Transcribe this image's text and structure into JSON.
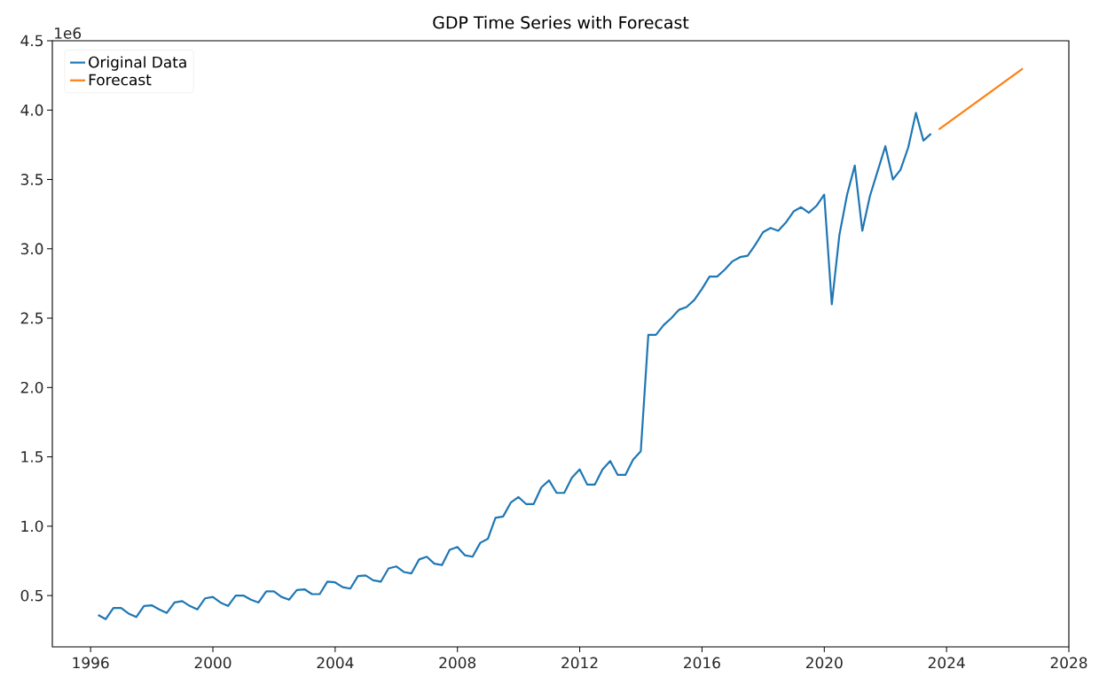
{
  "chart_data": {
    "type": "line",
    "title": "GDP Time Series with Forecast",
    "annotations": [
      "1e6"
    ],
    "series": [
      {
        "name": "Original Data",
        "color": "#1f77b4",
        "x": [
          "1996-03-31",
          "1996-06-30",
          "1996-09-30",
          "1996-12-31",
          "1997-03-31",
          "1997-06-30",
          "1997-09-30",
          "1997-12-31",
          "1998-03-31",
          "1998-06-30",
          "1998-09-30",
          "1998-12-31",
          "1999-03-31",
          "1999-06-30",
          "1999-09-30",
          "1999-12-31",
          "2000-03-31",
          "2000-06-30",
          "2000-09-30",
          "2000-12-31",
          "2001-03-31",
          "2001-06-30",
          "2001-09-30",
          "2001-12-31",
          "2002-03-31",
          "2002-06-30",
          "2002-09-30",
          "2002-12-31",
          "2003-03-31",
          "2003-06-30",
          "2003-09-30",
          "2003-12-31",
          "2004-03-31",
          "2004-06-30",
          "2004-09-30",
          "2004-12-31",
          "2005-03-31",
          "2005-06-30",
          "2005-09-30",
          "2005-12-31",
          "2006-03-31",
          "2006-06-30",
          "2006-09-30",
          "2006-12-31",
          "2007-03-31",
          "2007-06-30",
          "2007-09-30",
          "2007-12-31",
          "2008-03-31",
          "2008-06-30",
          "2008-09-30",
          "2008-12-31",
          "2009-03-31",
          "2009-06-30",
          "2009-09-30",
          "2009-12-31",
          "2010-03-31",
          "2010-06-30",
          "2010-09-30",
          "2010-12-31",
          "2011-03-31",
          "2011-06-30",
          "2011-09-30",
          "2011-12-31",
          "2012-03-31",
          "2012-06-30",
          "2012-09-30",
          "2012-12-31",
          "2013-03-31",
          "2013-06-30",
          "2013-09-30",
          "2013-12-31",
          "2014-03-31",
          "2014-06-30",
          "2014-09-30",
          "2014-12-31",
          "2015-03-31",
          "2015-06-30",
          "2015-09-30",
          "2015-12-31",
          "2016-03-31",
          "2016-06-30",
          "2016-09-30",
          "2016-12-31",
          "2017-03-31",
          "2017-06-30",
          "2017-09-30",
          "2017-12-31",
          "2018-03-31",
          "2018-06-30",
          "2018-09-30",
          "2018-12-31",
          "2019-03-31",
          "2019-06-30",
          "2019-09-30",
          "2019-12-31",
          "2020-03-31",
          "2020-06-30",
          "2020-09-30",
          "2020-12-31",
          "2021-03-31",
          "2021-06-30",
          "2021-09-30",
          "2021-12-31",
          "2022-03-31",
          "2022-06-30",
          "2022-09-30",
          "2022-12-31",
          "2023-03-31",
          "2023-06-30"
        ],
        "values": [
          0.36,
          0.33,
          0.41,
          0.41,
          0.37,
          0.345,
          0.425,
          0.43,
          0.4,
          0.375,
          0.45,
          0.46,
          0.425,
          0.4,
          0.48,
          0.49,
          0.45,
          0.425,
          0.5,
          0.5,
          0.47,
          0.45,
          0.53,
          0.53,
          0.49,
          0.47,
          0.54,
          0.545,
          0.51,
          0.51,
          0.6,
          0.595,
          0.56,
          0.55,
          0.64,
          0.645,
          0.61,
          0.6,
          0.695,
          0.71,
          0.67,
          0.66,
          0.76,
          0.78,
          0.73,
          0.72,
          0.83,
          0.85,
          0.79,
          0.78,
          0.88,
          0.91,
          1.06,
          1.07,
          1.17,
          1.21,
          1.16,
          1.16,
          1.28,
          1.33,
          1.24,
          1.24,
          1.35,
          1.41,
          1.3,
          1.3,
          1.41,
          1.47,
          1.37,
          1.37,
          1.48,
          1.54,
          2.38,
          2.38,
          2.45,
          2.5,
          2.56,
          2.58,
          2.63,
          2.71,
          2.8,
          2.8,
          2.85,
          2.91,
          2.94,
          2.95,
          3.03,
          3.12,
          3.15,
          3.13,
          3.19,
          3.27,
          3.3,
          3.26,
          3.31,
          3.39,
          2.6,
          3.1,
          3.39,
          3.6,
          3.13,
          3.38,
          3.56,
          3.74,
          3.5,
          3.57,
          3.73,
          3.98,
          3.78,
          3.83
        ]
      },
      {
        "name": "Forecast",
        "color": "#ff7f0e",
        "x": [
          "2023-09-30",
          "2026-06-30"
        ],
        "values": [
          3.86,
          4.3
        ]
      }
    ],
    "xlim": [
      "1994-10-01",
      "2028-01-01"
    ],
    "xticks": [
      "1996",
      "2000",
      "2004",
      "2008",
      "2012",
      "2016",
      "2020",
      "2024",
      "2028"
    ],
    "ylim": [
      0.13,
      4.5
    ],
    "yticks": [
      {
        "value": 0.5,
        "label": "0.5"
      },
      {
        "value": 1.0,
        "label": "1.0"
      },
      {
        "value": 1.5,
        "label": "1.5"
      },
      {
        "value": 2.0,
        "label": "2.0"
      },
      {
        "value": 2.5,
        "label": "2.5"
      },
      {
        "value": 3.0,
        "label": "3.0"
      },
      {
        "value": 3.5,
        "label": "3.5"
      },
      {
        "value": 4.0,
        "label": "4.0"
      },
      {
        "value": 4.5,
        "label": "4.5"
      }
    ],
    "legend": "top left",
    "grid": false,
    "line_style": "solid"
  }
}
